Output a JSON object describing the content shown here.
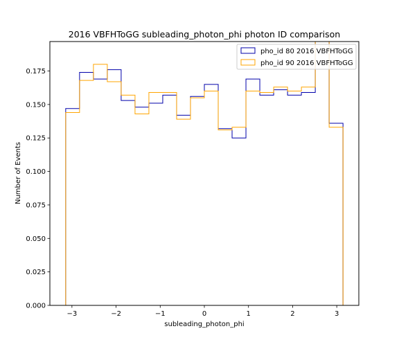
{
  "chart_data": {
    "type": "histogram",
    "title": "2016 VBFHToGG subleading_photon_phi photon ID comparison",
    "xlabel": "subleading_photon_phi",
    "ylabel": "Number of Events",
    "xlim": [
      -3.5,
      3.5
    ],
    "ylim": [
      0.0,
      0.197
    ],
    "xticks": [
      -3,
      -2,
      -1,
      0,
      1,
      2,
      3
    ],
    "xtick_labels": [
      "−3",
      "−2",
      "−1",
      "0",
      "1",
      "2",
      "3"
    ],
    "yticks": [
      0.0,
      0.025,
      0.05,
      0.075,
      0.1,
      0.125,
      0.15,
      0.175
    ],
    "ytick_labels": [
      "0.000",
      "0.025",
      "0.050",
      "0.075",
      "0.100",
      "0.125",
      "0.150",
      "0.175"
    ],
    "bin_edges": [
      -3.1416,
      -2.8274,
      -2.5133,
      -2.1991,
      -1.885,
      -1.5708,
      -1.2566,
      -0.9425,
      -0.6283,
      -0.3142,
      0.0,
      0.3142,
      0.6283,
      0.9425,
      1.2566,
      1.5708,
      1.885,
      2.1991,
      2.5133,
      2.8274,
      3.1416
    ],
    "series": [
      {
        "name": "pho_id 80 2016 VBFHToGG",
        "color": "#0000aa",
        "values": [
          0.147,
          0.174,
          0.169,
          0.176,
          0.153,
          0.148,
          0.151,
          0.157,
          0.142,
          0.156,
          0.165,
          0.132,
          0.125,
          0.169,
          0.157,
          0.161,
          0.157,
          0.159,
          0.207,
          0.136
        ]
      },
      {
        "name": "pho_id 90 2016 VBFHToGG",
        "color": "#ffa500",
        "values": [
          0.144,
          0.168,
          0.18,
          0.167,
          0.157,
          0.143,
          0.159,
          0.159,
          0.139,
          0.155,
          0.16,
          0.131,
          0.133,
          0.16,
          0.159,
          0.163,
          0.16,
          0.163,
          0.208,
          0.133
        ]
      }
    ],
    "legend_position": "top-right",
    "grid": false
  }
}
